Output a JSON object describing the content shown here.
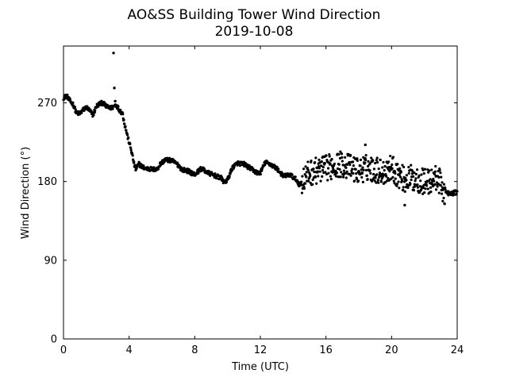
{
  "chart_data": {
    "type": "scatter",
    "title": "AO&SS Building Tower Wind Direction",
    "subtitle": "2019-10-08",
    "xlabel": "Time (UTC)",
    "ylabel": "Wind Direction (°)",
    "xlim": [
      0,
      24
    ],
    "ylim": [
      0,
      335
    ],
    "xticks": [
      0,
      4,
      8,
      12,
      16,
      20,
      24
    ],
    "yticks": [
      0,
      90,
      180,
      270
    ],
    "xtick_labels": [
      "0",
      "4",
      "8",
      "12",
      "16",
      "20",
      "24"
    ],
    "ytick_labels": [
      "0",
      "90",
      "180",
      "270"
    ],
    "grid": false,
    "marker_color": "#000000",
    "profile": [
      [
        0.0,
        276
      ],
      [
        0.2,
        278
      ],
      [
        0.4,
        272
      ],
      [
        0.6,
        268
      ],
      [
        0.8,
        258
      ],
      [
        1.0,
        258
      ],
      [
        1.2,
        262
      ],
      [
        1.4,
        265
      ],
      [
        1.6,
        261
      ],
      [
        1.8,
        256
      ],
      [
        2.0,
        266
      ],
      [
        2.2,
        269
      ],
      [
        2.4,
        270
      ],
      [
        2.6,
        266
      ],
      [
        2.8,
        264
      ],
      [
        3.0,
        265
      ],
      [
        3.2,
        268
      ],
      [
        3.4,
        262
      ],
      [
        3.6,
        258
      ],
      [
        3.7,
        248
      ],
      [
        3.8,
        240
      ],
      [
        3.9,
        232
      ],
      [
        4.0,
        225
      ],
      [
        4.1,
        218
      ],
      [
        4.2,
        210
      ],
      [
        4.3,
        200
      ],
      [
        4.4,
        194
      ],
      [
        4.6,
        200
      ],
      [
        4.8,
        197
      ],
      [
        5.0,
        195
      ],
      [
        5.4,
        194
      ],
      [
        5.7,
        194
      ],
      [
        5.9,
        200
      ],
      [
        6.2,
        205
      ],
      [
        6.6,
        204
      ],
      [
        7.0,
        199
      ],
      [
        7.2,
        194
      ],
      [
        7.6,
        192
      ],
      [
        8.0,
        188
      ],
      [
        8.4,
        195
      ],
      [
        8.8,
        190
      ],
      [
        9.2,
        187
      ],
      [
        9.6,
        184
      ],
      [
        9.8,
        179
      ],
      [
        10.0,
        182
      ],
      [
        10.3,
        196
      ],
      [
        10.6,
        201
      ],
      [
        11.0,
        200
      ],
      [
        11.4,
        195
      ],
      [
        11.8,
        190
      ],
      [
        12.0,
        190
      ],
      [
        12.3,
        202
      ],
      [
        12.6,
        200
      ],
      [
        13.0,
        195
      ],
      [
        13.4,
        186
      ],
      [
        13.8,
        188
      ],
      [
        14.2,
        182
      ],
      [
        14.4,
        176
      ],
      [
        14.6,
        182
      ],
      [
        15.0,
        190
      ],
      [
        15.5,
        193
      ],
      [
        16.0,
        195
      ],
      [
        16.5,
        199
      ],
      [
        17.0,
        200
      ],
      [
        17.5,
        196
      ],
      [
        18.0,
        192
      ],
      [
        18.5,
        196
      ],
      [
        19.0,
        194
      ],
      [
        19.5,
        191
      ],
      [
        20.0,
        196
      ],
      [
        20.4,
        188
      ],
      [
        20.8,
        182
      ],
      [
        21.2,
        184
      ],
      [
        21.6,
        182
      ],
      [
        22.0,
        180
      ],
      [
        22.4,
        180
      ],
      [
        22.8,
        185
      ],
      [
        23.2,
        168
      ],
      [
        23.6,
        166
      ],
      [
        24.0,
        168
      ]
    ],
    "noisy_segments": [
      {
        "x_start": 14.5,
        "x_end": 23.3,
        "amplitude": 15
      }
    ],
    "outliers": [
      {
        "x": 3.05,
        "y": 327
      },
      {
        "x": 3.1,
        "y": 287
      },
      {
        "x": 3.15,
        "y": 272
      },
      {
        "x": 20.8,
        "y": 153
      },
      {
        "x": 18.4,
        "y": 222
      }
    ]
  }
}
